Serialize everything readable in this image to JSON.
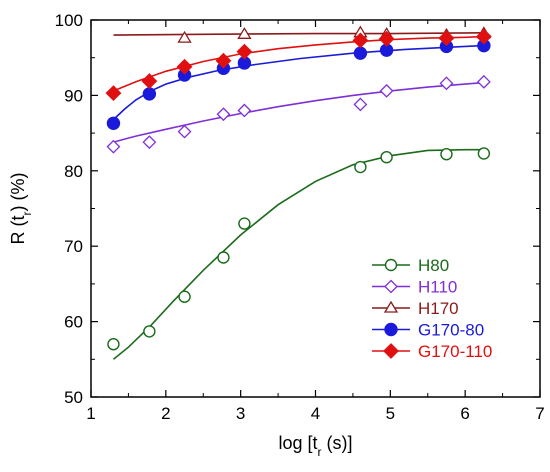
{
  "chart_data": {
    "type": "scatter",
    "title": "",
    "xlabel": "log [t_r (s)]",
    "ylabel": "R (t_r) (%)",
    "xlim": [
      1,
      7
    ],
    "ylim": [
      50,
      100
    ],
    "xticks": [
      "1",
      "2",
      "3",
      "4",
      "5",
      "6",
      "7"
    ],
    "yticks": [
      "50",
      "60",
      "70",
      "80",
      "90",
      "100"
    ],
    "grid": false,
    "legend_position": "bottom-right",
    "series": [
      {
        "name": "H80",
        "color": "#1a6b1a",
        "marker": "circle-open",
        "x": [
          1.3,
          1.78,
          2.25,
          2.77,
          3.05,
          4.6,
          4.95,
          5.75,
          6.25
        ],
        "y": [
          57.0,
          58.7,
          63.3,
          68.5,
          73.0,
          80.5,
          81.8,
          82.2,
          82.3
        ],
        "fit": {
          "x": [
            1.3,
            1.5,
            1.8,
            2.1,
            2.5,
            3.0,
            3.5,
            4.0,
            4.5,
            5.0,
            5.5,
            6.0,
            6.25
          ],
          "y": [
            55.0,
            56.6,
            59.5,
            62.7,
            66.8,
            71.5,
            75.5,
            78.6,
            80.8,
            82.0,
            82.7,
            82.8,
            82.8
          ]
        }
      },
      {
        "name": "H110",
        "color": "#7f2fd8",
        "marker": "diamond-open",
        "x": [
          1.3,
          1.78,
          2.25,
          2.77,
          3.05,
          4.6,
          4.95,
          5.75,
          6.25
        ],
        "y": [
          83.2,
          83.8,
          85.2,
          87.5,
          88.0,
          88.8,
          90.6,
          91.6,
          91.8
        ],
        "fit": {
          "x": [
            1.3,
            1.6,
            2.0,
            2.5,
            3.0,
            3.5,
            4.0,
            4.5,
            5.0,
            5.5,
            6.0,
            6.25
          ],
          "y": [
            83.8,
            84.6,
            85.5,
            86.6,
            87.6,
            88.5,
            89.3,
            90.0,
            90.6,
            91.1,
            91.5,
            91.7
          ]
        }
      },
      {
        "name": "H170",
        "color": "#8b1a1a",
        "marker": "triangle-open",
        "x": [
          2.25,
          3.05,
          4.6,
          4.95,
          5.75,
          6.25
        ],
        "y": [
          97.6,
          98.1,
          98.3,
          98.1,
          98.0,
          98.2
        ],
        "fit": {
          "x": [
            1.3,
            2.5,
            4.0,
            5.0,
            6.25
          ],
          "y": [
            98.0,
            98.1,
            98.2,
            98.2,
            98.3
          ]
        }
      },
      {
        "name": "G170-80",
        "color": "#1a1adb",
        "marker": "circle-filled",
        "x": [
          1.3,
          1.78,
          2.25,
          2.77,
          3.05,
          4.6,
          4.95,
          5.75,
          6.25
        ],
        "y": [
          86.3,
          90.2,
          92.7,
          93.6,
          94.3,
          95.6,
          96.0,
          96.5,
          96.6
        ],
        "fit": {
          "x": [
            1.3,
            1.45,
            1.6,
            1.8,
            2.0,
            2.3,
            2.7,
            3.2,
            3.8,
            4.5,
            5.2,
            6.0,
            6.25
          ],
          "y": [
            86.8,
            88.2,
            89.4,
            90.6,
            91.5,
            92.4,
            93.3,
            94.1,
            94.9,
            95.6,
            96.1,
            96.5,
            96.6
          ]
        }
      },
      {
        "name": "G170-110",
        "color": "#e01010",
        "marker": "diamond-filled",
        "x": [
          1.3,
          1.78,
          2.25,
          2.77,
          3.05,
          4.6,
          4.95,
          5.75,
          6.25
        ],
        "y": [
          90.3,
          91.9,
          93.8,
          94.6,
          95.8,
          97.3,
          97.5,
          97.6,
          97.8
        ],
        "fit": {
          "x": [
            1.3,
            1.6,
            2.0,
            2.5,
            3.0,
            3.5,
            4.0,
            4.5,
            5.0,
            5.5,
            6.0,
            6.25
          ],
          "y": [
            90.6,
            91.8,
            93.2,
            94.5,
            95.5,
            96.2,
            96.7,
            97.1,
            97.4,
            97.6,
            97.7,
            97.8
          ]
        }
      }
    ]
  }
}
